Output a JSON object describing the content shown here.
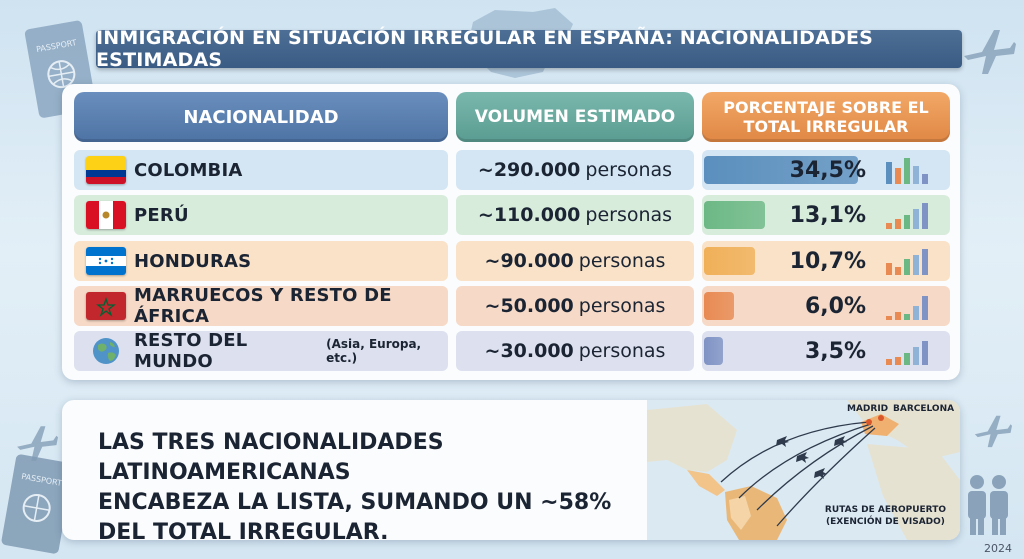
{
  "title": "INMIGRACIÓN EN SITUACIÓN IRREGULAR EN ESPAÑA: NACIONALIDADES ESTIMADAS",
  "headers": {
    "nationality": "NACIONALIDAD",
    "volume": "VOLUMEN ESTIMADO",
    "percentage": "PORCENTAJE SOBRE EL TOTAL IRREGULAR"
  },
  "rows": [
    {
      "label": "COLOMBIA",
      "sub": "",
      "volume_num": "~290.000",
      "volume_unit": "personas",
      "pct_text": "34,5%",
      "pct": 34.5,
      "flag": "colombia-flag",
      "bg": "#d4e6f3",
      "bar": "#5b8fbd"
    },
    {
      "label": "PERÚ",
      "sub": "",
      "volume_num": "~110.000",
      "volume_unit": "personas",
      "pct_text": "13,1%",
      "pct": 13.1,
      "flag": "peru-flag",
      "bg": "#d8ecdc",
      "bar": "#6cb885"
    },
    {
      "label": "HONDURAS",
      "sub": "",
      "volume_num": "~90.000",
      "volume_unit": "personas",
      "pct_text": "10,7%",
      "pct": 10.7,
      "flag": "honduras-flag",
      "bg": "#f9e2c8",
      "bar": "#f0b058"
    },
    {
      "label": "MARRUECOS Y RESTO DE ÁFRICA",
      "sub": "",
      "volume_num": "~50.000",
      "volume_unit": "personas",
      "pct_text": "6,0%",
      "pct": 6.0,
      "flag": "morocco-flag",
      "bg": "#f6d9c6",
      "bar": "#e88a52"
    },
    {
      "label": "RESTO DEL MUNDO",
      "sub": "(Asia, Europa, etc.)",
      "volume_num": "~30.000",
      "volume_unit": "personas",
      "pct_text": "3,5%",
      "pct": 3.5,
      "flag": "globe-icon",
      "bg": "#dde1ef",
      "bar": "#7f93c4"
    }
  ],
  "summary": [
    "LAS TRES NACIONALIDADES LATINOAMERICANAS",
    "ENCABEZA LA LISTA, SUMANDO UN ~58%",
    "DEL TOTAL IRREGULAR."
  ],
  "map": {
    "madrid": "MADRID",
    "barcelona": "BARCELONA",
    "routes_line1": "RUTAS DE AEROPUERTO",
    "routes_line2": "(EXENCIÓN DE VISADO)"
  },
  "year": "2024",
  "decorations": [
    "passport-icon",
    "spain-map-icon",
    "airplane-icon",
    "people-icon"
  ]
}
